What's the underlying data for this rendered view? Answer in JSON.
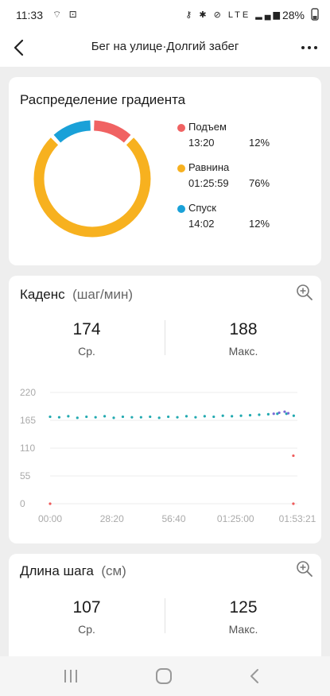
{
  "status": {
    "time": "11:33",
    "left_icons": [
      "wifi-calling-icon",
      "lock-icon"
    ],
    "left_icons_glyph": "⌔ ⊡",
    "right_icons": [
      "key-icon",
      "bluetooth-icon",
      "mute-icon",
      "lte-icon",
      "signal-icon"
    ],
    "right_icons_glyph": "⚷ ✱ ⊘ LTE ▂▄▆",
    "battery": "28%"
  },
  "header": {
    "title": "Бег на улице·Долгий забег",
    "back_icon": "back-arrow-icon",
    "more_icon": "more-icon"
  },
  "gradient": {
    "title": "Распределение градиента",
    "items": [
      {
        "name": "Подъем",
        "time": "13:20",
        "percent": "12%",
        "color": "#f06262"
      },
      {
        "name": "Равнина",
        "time": "01:25:59",
        "percent": "76%",
        "color": "#f7b11f"
      },
      {
        "name": "Спуск",
        "time": "14:02",
        "percent": "12%",
        "color": "#1aa1d8"
      }
    ]
  },
  "cadence": {
    "title": "Каденс",
    "unit": "(шаг/мин)",
    "zoom_icon": "zoom-in-icon",
    "avg_value": "174",
    "avg_label": "Ср.",
    "max_value": "188",
    "max_label": "Макс."
  },
  "stride": {
    "title": "Длина шага",
    "unit": "(см)",
    "zoom_icon": "zoom-in-icon",
    "avg_value": "107",
    "avg_label": "Ср.",
    "max_value": "125",
    "max_label": "Макс."
  },
  "chart_data": {
    "type": "scatter",
    "title": "",
    "xlabel": "",
    "ylabel": "",
    "x_ticks": [
      "00:00",
      "28:20",
      "56:40",
      "01:25:00",
      "01:53:21"
    ],
    "y_ticks": [
      "220",
      "165",
      "110",
      "55",
      "0"
    ],
    "y_tick_values": [
      220,
      165,
      110,
      55,
      0
    ],
    "xlim_seconds": [
      0,
      6801
    ],
    "ylim": [
      0,
      220
    ],
    "grid": "horizontal",
    "series": [
      {
        "color": "#21a9b0",
        "points": [
          [
            0,
            172
          ],
          [
            250,
            171
          ],
          [
            500,
            173
          ],
          [
            750,
            170
          ],
          [
            1000,
            172
          ],
          [
            1250,
            171
          ],
          [
            1500,
            173
          ],
          [
            1750,
            170
          ],
          [
            2000,
            172
          ],
          [
            2250,
            171
          ],
          [
            2500,
            171
          ],
          [
            2750,
            172
          ],
          [
            3000,
            170
          ],
          [
            3250,
            172
          ],
          [
            3500,
            171
          ],
          [
            3750,
            173
          ],
          [
            4000,
            171
          ],
          [
            4250,
            173
          ],
          [
            4500,
            172
          ],
          [
            4750,
            174
          ],
          [
            5000,
            173
          ],
          [
            5250,
            174
          ],
          [
            5500,
            175
          ],
          [
            5750,
            176
          ],
          [
            6000,
            177
          ],
          [
            6250,
            178
          ],
          [
            6500,
            178
          ],
          [
            6700,
            174
          ]
        ]
      },
      {
        "color": "#7b6bd6",
        "points": [
          [
            6150,
            178
          ],
          [
            6300,
            180
          ],
          [
            6450,
            182
          ],
          [
            6550,
            179
          ]
        ]
      },
      {
        "color": "#ef5a5a",
        "points": [
          [
            0,
            0
          ],
          [
            6690,
            95
          ],
          [
            6690,
            0
          ]
        ]
      }
    ]
  },
  "nav": {
    "recent_icon": "recent-apps-icon",
    "home_icon": "home-icon",
    "back_icon": "nav-back-icon"
  }
}
